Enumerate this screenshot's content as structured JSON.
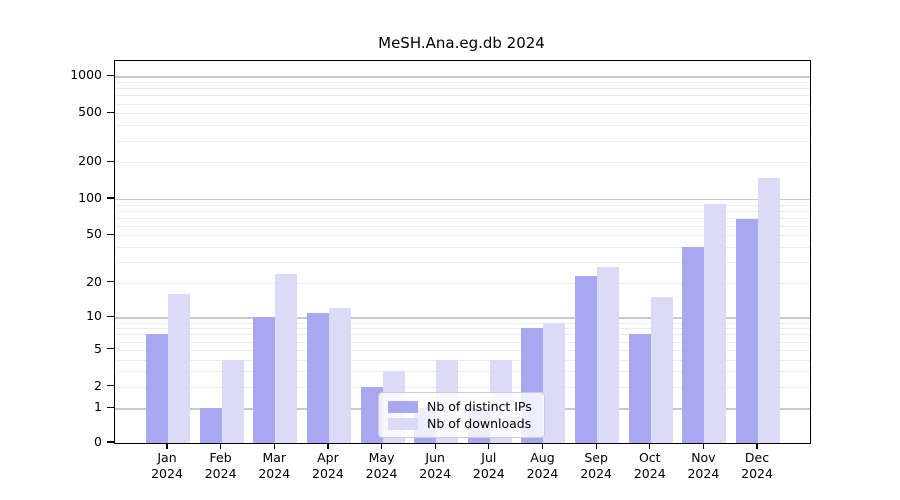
{
  "chart_data": {
    "type": "bar",
    "title": "MeSH.Ana.eg.db 2024",
    "categories": [
      "Jan",
      "Feb",
      "Mar",
      "Apr",
      "May",
      "Jun",
      "Jul",
      "Aug",
      "Sep",
      "Oct",
      "Nov",
      "Dec"
    ],
    "year_label": "2024",
    "series": [
      {
        "name": "Nb of distinct IPs",
        "color": "#a8a8f0",
        "values": [
          7,
          1,
          10,
          11,
          2,
          1,
          1,
          8,
          23,
          7,
          40,
          69
        ]
      },
      {
        "name": "Nb of downloads",
        "color": "#dbdbf8",
        "values": [
          16,
          4,
          24,
          12,
          3,
          4,
          4,
          9,
          27,
          15,
          91,
          148
        ]
      }
    ],
    "y_scale": "log10(1+x)",
    "ylim": [
      0,
      1000
    ],
    "y_tick_values": [
      1000,
      500,
      200,
      100,
      50,
      20,
      10,
      5,
      2,
      1,
      0
    ],
    "y_tick_labels": [
      "1000",
      "500",
      "200",
      "100",
      "50",
      "20",
      "10",
      "5",
      "2",
      "1",
      "0"
    ],
    "major_gridlines": [
      1,
      10,
      100,
      1000
    ],
    "minor_gridlines": [
      2,
      3,
      4,
      5,
      6,
      7,
      8,
      9,
      20,
      30,
      40,
      50,
      60,
      70,
      80,
      90,
      200,
      300,
      400,
      500,
      600,
      700,
      800,
      900
    ],
    "grid": true,
    "legend_position": "inside-bottom-center"
  },
  "colors": {
    "bar_ips": "#a8a8f0",
    "bar_downloads": "#dbdbf8",
    "major_grid": "#c8c8c8",
    "minor_grid": "#ececec",
    "spine": "#000000",
    "legend_border": "#cccccc",
    "legend_background": "rgba(255,255,255,0.8)"
  }
}
